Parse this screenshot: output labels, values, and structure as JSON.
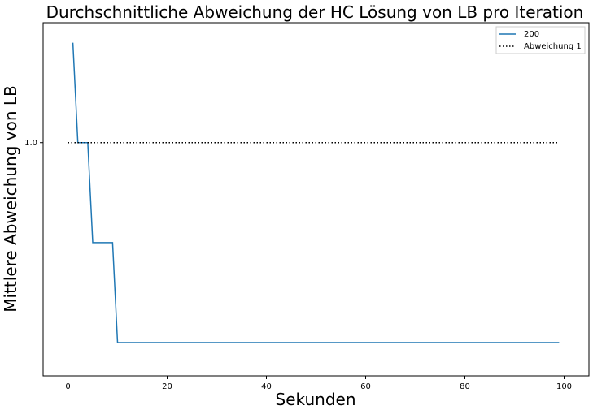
{
  "chart_data": {
    "type": "line",
    "title": "Durchschnittliche Abweichung der HC Lösung von LB pro Iteration",
    "xlabel": "Sekunden",
    "ylabel": "Mittlere Abweichung von LB",
    "xlim": [
      -5,
      105
    ],
    "ylim": [
      0.93,
      1.036
    ],
    "x_ticks": [
      0,
      20,
      40,
      60,
      80,
      100
    ],
    "x_tick_labels": [
      "0",
      "20",
      "40",
      "60",
      "80",
      "100"
    ],
    "y_ticks": [
      1.0
    ],
    "y_tick_labels": [
      "1.0"
    ],
    "grid": false,
    "legend_position": "top-right",
    "series": [
      {
        "name": "200",
        "color": "#1f77b4",
        "style": "solid",
        "x": [
          1,
          2,
          2,
          4,
          5,
          5,
          9,
          10,
          10,
          99
        ],
        "y": [
          1.03,
          1.0,
          1.0,
          1.0,
          0.97,
          0.97,
          0.97,
          0.94,
          0.94,
          0.94
        ]
      },
      {
        "name": "Abweichung 1",
        "color": "#000000",
        "style": "dotted",
        "x": [
          0,
          99
        ],
        "y": [
          1.0,
          1.0
        ]
      }
    ]
  }
}
